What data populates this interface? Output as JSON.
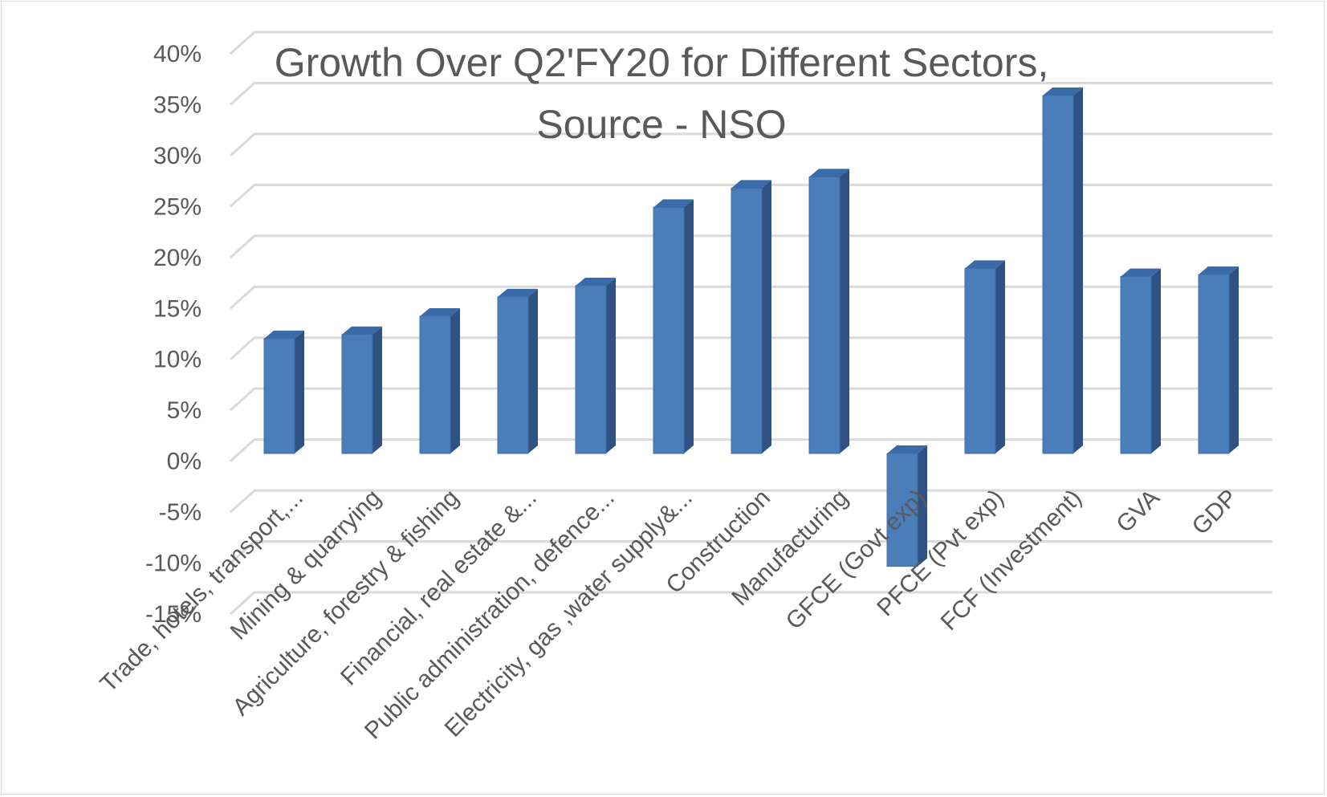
{
  "chart_data": {
    "type": "bar",
    "title": "Growth Over Q2'FY20 for Different Sectors,",
    "subtitle": "Source - NSO",
    "categories": [
      "Trade, hotels, transport,...",
      "Mining & quarrying",
      "Agriculture, forestry & fishing",
      "Financial,  real estate &...",
      "Public administration, defence...",
      "Electricity, gas ,water supply&...",
      "Construction",
      "Manufacturing",
      "GFCE (Govt exp)",
      "PFCE (Pvt exp)",
      "FCF (Investment)",
      "GVA",
      "GDP"
    ],
    "values": [
      11.3,
      11.7,
      13.5,
      15.4,
      16.5,
      24.2,
      26.1,
      27.2,
      -11.1,
      18.2,
      35.2,
      17.4,
      17.6
    ],
    "y_tick_labels": [
      "40%",
      "35%",
      "30%",
      "25%",
      "20%",
      "15%",
      "10%",
      "5%",
      "0%",
      "-5%",
      "-10%",
      "-15%"
    ],
    "ylim": [
      -15,
      40
    ],
    "grid": true,
    "colors": {
      "bar_front": "#4a7ebb",
      "bar_side": "#2f5283",
      "bar_top": "#3b6aa8",
      "gridline": "#d9d9d9",
      "text": "#595959"
    }
  }
}
